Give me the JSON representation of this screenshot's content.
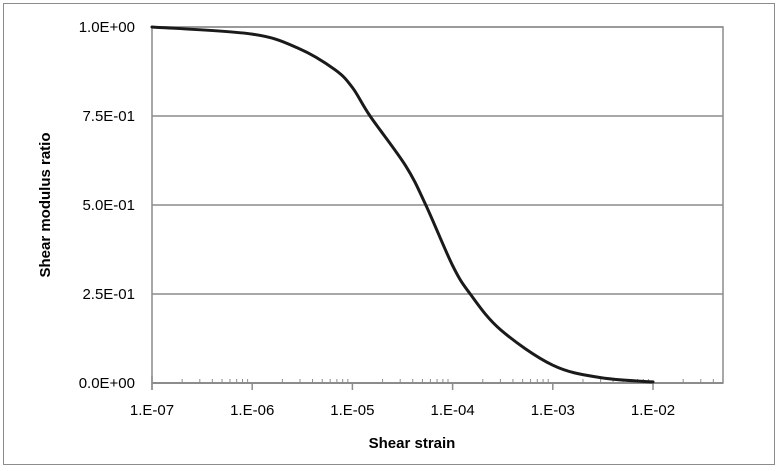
{
  "chart_data": {
    "type": "line",
    "title": "",
    "xlabel": "Shear strain",
    "ylabel": "Shear modulus ratio",
    "xscale": "log",
    "xlim": [
      1e-07,
      0.05
    ],
    "ylim": [
      0,
      1
    ],
    "grid": {
      "y_major": true,
      "x_major": false
    },
    "legend": null,
    "x_tick_labels": [
      "1.E-07",
      "1.E-06",
      "1.E-05",
      "1.E-04",
      "1.E-03",
      "1.E-02"
    ],
    "y_tick_labels": [
      "0.0E+00",
      "2.5E-01",
      "5.0E-01",
      "7.5E-01",
      "1.0E+00"
    ],
    "series": [
      {
        "name": "Shear modulus ratio",
        "color": "#1a1a1a",
        "x": [
          1e-07,
          1e-06,
          2.9e-06,
          6.7e-06,
          1e-05,
          1.5e-05,
          3.4e-05,
          5.4e-05,
          0.0001,
          0.00015,
          0.0003,
          0.001,
          0.003,
          0.01
        ],
        "y": [
          1.0,
          0.98,
          0.94,
          0.88,
          0.83,
          0.75,
          0.61,
          0.5,
          0.33,
          0.25,
          0.15,
          0.05,
          0.015,
          0.003
        ]
      }
    ]
  },
  "colors": {
    "frame": "#8c8c8c",
    "gridline": "#8c8c8c",
    "curve": "#1a1a1a"
  }
}
